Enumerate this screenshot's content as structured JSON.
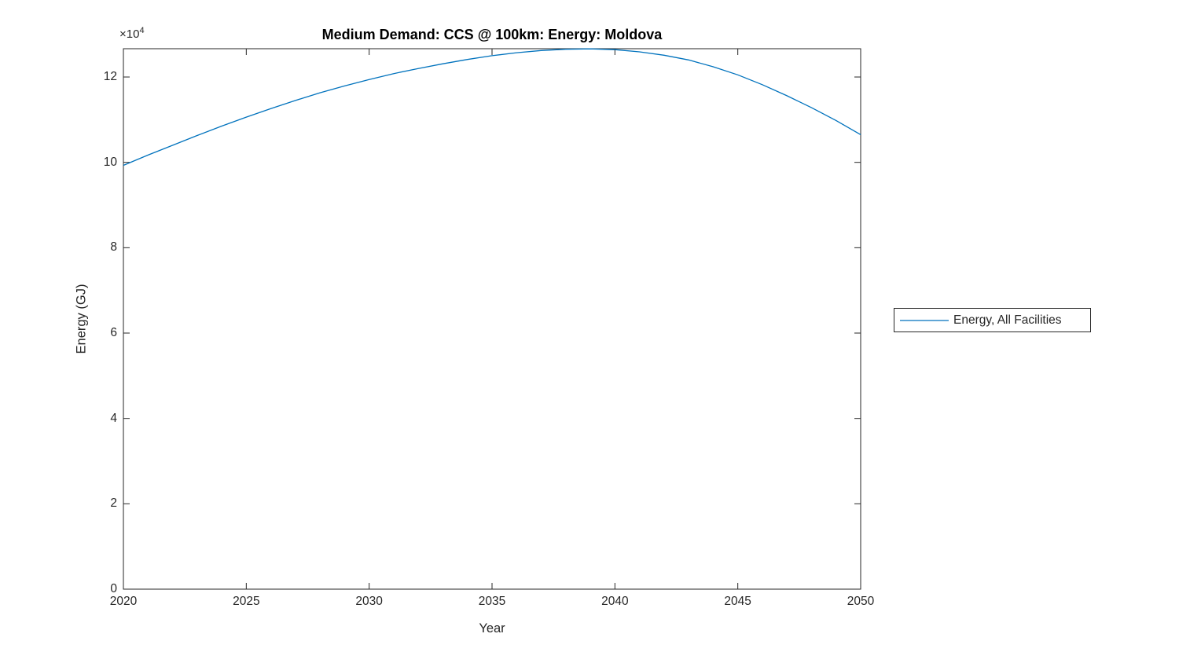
{
  "figure": {
    "title": "Medium Demand: CCS @ 100km: Energy: Moldova"
  },
  "axes": {
    "xlabel": "Year",
    "ylabel": "Energy (GJ)",
    "y_multiplier_base": "×10",
    "y_multiplier_exponent": "4"
  },
  "legend": {
    "items": [
      {
        "label": "Energy, All Facilities",
        "color": "#0072BD"
      }
    ]
  },
  "colors": {
    "line": "#0072BD",
    "axis": "#262626",
    "background": "#ffffff"
  },
  "chart_data": {
    "type": "line",
    "title": "Medium Demand: CCS @ 100km: Energy: Moldova",
    "xlabel": "Year",
    "ylabel": "Energy (GJ)",
    "y_unit_note": "values in ×10^4 GJ (axis multiplier ×10^4)",
    "xlim": [
      2020,
      2050
    ],
    "ylim": [
      0,
      12.663
    ],
    "x_ticks": [
      2020,
      2025,
      2030,
      2035,
      2040,
      2045,
      2050
    ],
    "y_ticks": [
      0,
      2,
      4,
      6,
      8,
      10,
      12
    ],
    "grid": false,
    "legend_position": "right-outside",
    "series": [
      {
        "name": "Energy, All Facilities",
        "color": "#0072BD",
        "x": [
          2020,
          2021,
          2022,
          2023,
          2024,
          2025,
          2026,
          2027,
          2028,
          2029,
          2030,
          2031,
          2032,
          2033,
          2034,
          2035,
          2036,
          2037,
          2038,
          2039,
          2040,
          2041,
          2042,
          2043,
          2044,
          2045,
          2046,
          2047,
          2048,
          2049,
          2050
        ],
        "y": [
          9.93,
          10.17,
          10.4,
          10.63,
          10.85,
          11.06,
          11.26,
          11.45,
          11.63,
          11.79,
          11.94,
          12.08,
          12.2,
          12.31,
          12.41,
          12.5,
          12.57,
          12.62,
          12.65,
          12.66,
          12.64,
          12.59,
          12.51,
          12.4,
          12.24,
          12.05,
          11.82,
          11.56,
          11.28,
          10.98,
          10.65
        ]
      }
    ]
  }
}
